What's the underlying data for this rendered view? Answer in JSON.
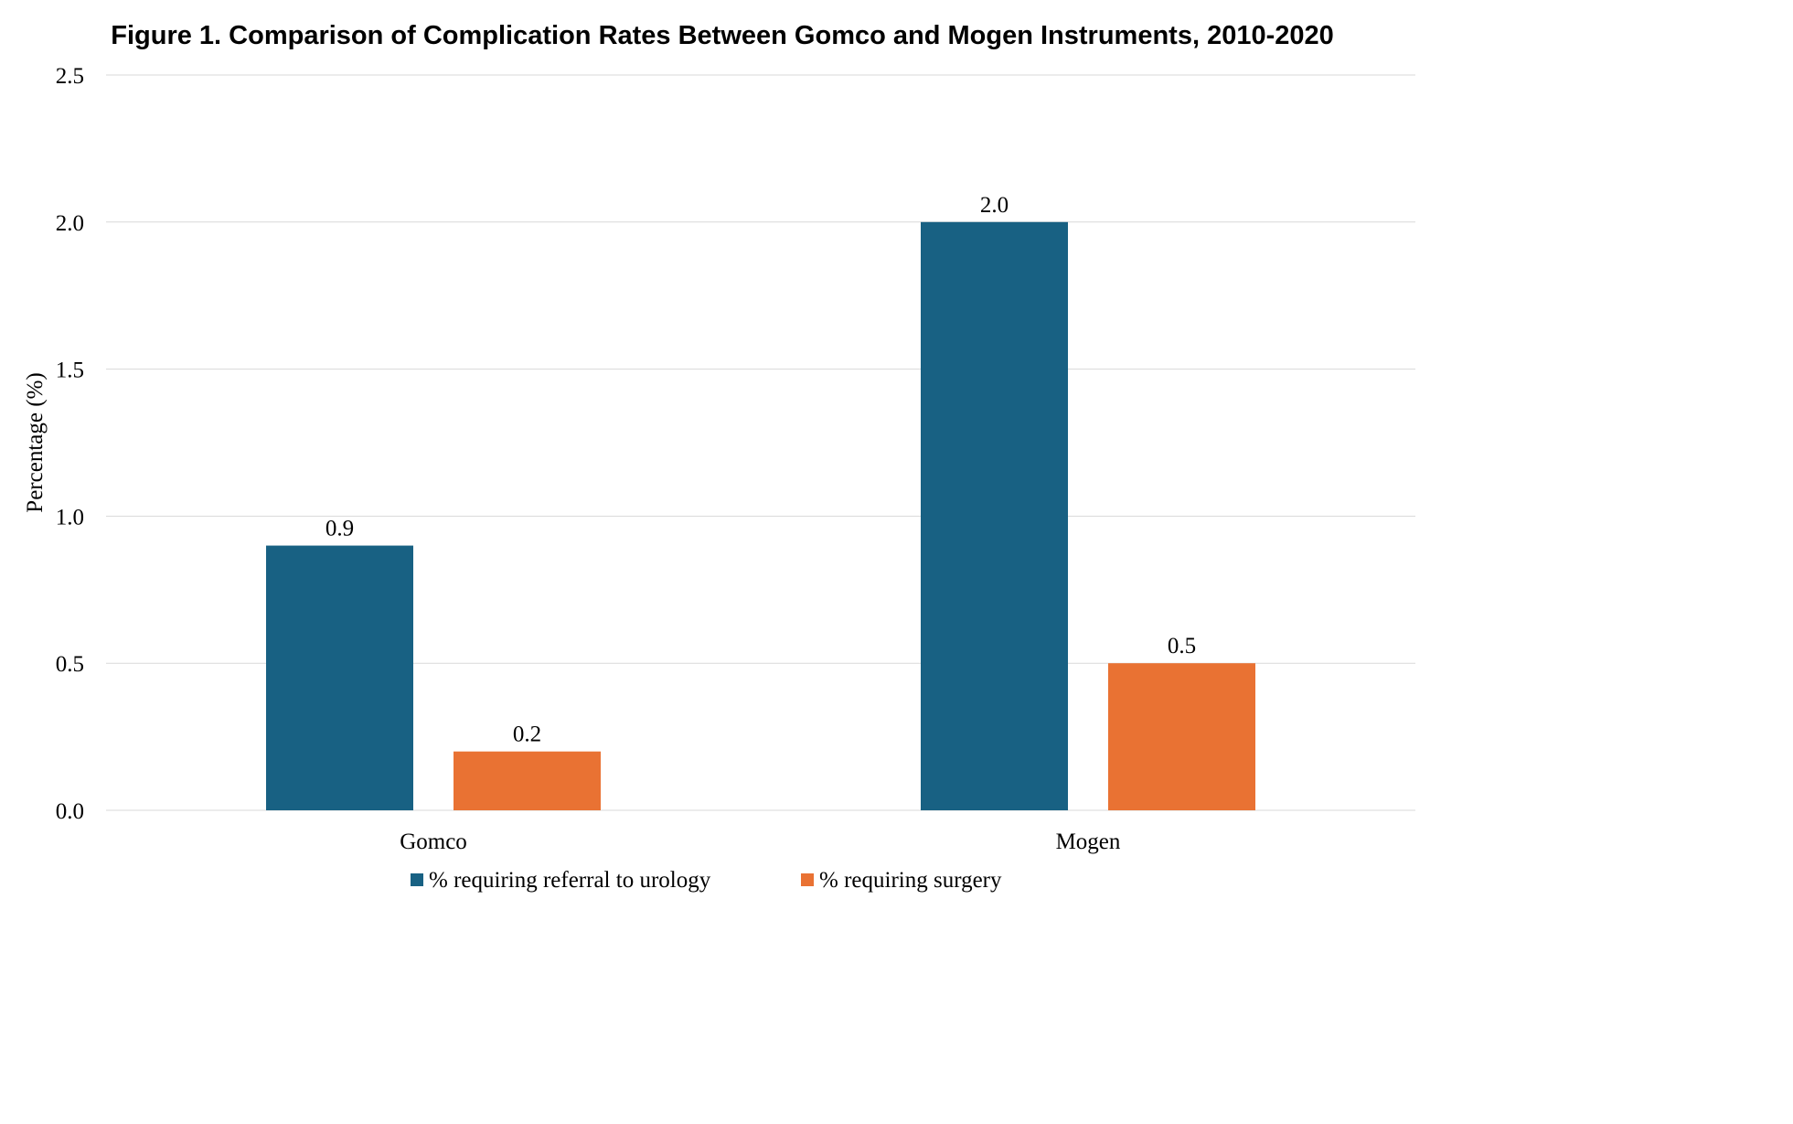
{
  "chart_data": {
    "type": "bar",
    "title": "Figure 1. Comparison of Complication Rates Between Gomco and Mogen Instruments, 2010-2020",
    "xlabel": "",
    "ylabel": "Percentage (%)",
    "ylim": [
      0,
      2.5
    ],
    "yticks": [
      "0.0",
      "0.5",
      "1.0",
      "1.5",
      "2.0",
      "2.5"
    ],
    "categories": [
      "Gomco",
      "Mogen"
    ],
    "series": [
      {
        "name": "% requiring referral to urology",
        "values": [
          0.9,
          2.0
        ],
        "labels": [
          "0.9",
          "2.0"
        ],
        "color": "#186183"
      },
      {
        "name": "% requiring surgery",
        "values": [
          0.2,
          0.5
        ],
        "labels": [
          "0.2",
          "0.5"
        ],
        "color": "#e97233"
      }
    ],
    "grid": true,
    "legend": "bottom"
  }
}
